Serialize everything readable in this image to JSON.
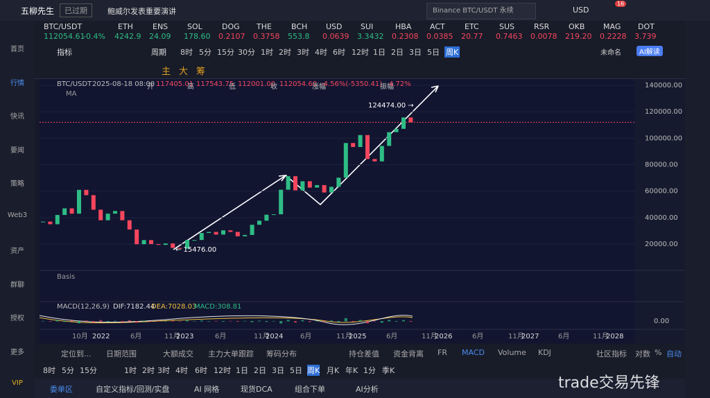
{
  "top_bar": {
    "app_name": "五柳先生",
    "status": "已过期",
    "news": "鲍威尔发表重要演讲",
    "search": "Binance BTC/USDT 永续",
    "currency": "USD",
    "badge": "16"
  },
  "tickers": [
    {
      "symbol": "BTC/USDT",
      "price": "112054.61",
      "change": "-0.4%"
    },
    {
      "symbol": "ETH",
      "price": "4242.9"
    },
    {
      "symbol": "ENS",
      "price": "24.09"
    },
    {
      "symbol": "SOL",
      "price": "178.60"
    },
    {
      "symbol": "DOG",
      "price": "0.2107"
    },
    {
      "symbol": "THE",
      "price": "0.3758"
    },
    {
      "symbol": "BCH",
      "price": "553.8"
    },
    {
      "symbol": "USD",
      "price": "0.0639"
    },
    {
      "symbol": "SUI",
      "price": "3.3432"
    },
    {
      "symbol": "HBA",
      "price": "0.2308"
    },
    {
      "symbol": "ACT",
      "price": "0.0385"
    },
    {
      "symbol": "ETC",
      "price": "20.77"
    },
    {
      "symbol": "SUS",
      "price": "0.7463"
    },
    {
      "symbol": "RSR",
      "price": "0.0078"
    },
    {
      "symbol": "OKB",
      "price": "219.20"
    },
    {
      "symbol": "MAG",
      "price": "0.2228"
    },
    {
      "symbol": "DOT",
      "price": "3.739"
    }
  ],
  "toolbar": {
    "indicator": "指标",
    "period": "周期",
    "periods": [
      "8时",
      "5分",
      "15分",
      "30分",
      "1时",
      "2时",
      "3时",
      "4时",
      "6时",
      "12时",
      "1日",
      "2日",
      "3日",
      "5日",
      "周K"
    ],
    "layout": "未命名",
    "ai": "AI解读",
    "draw_tools": [
      "主",
      "大",
      "筹"
    ]
  },
  "sidebar": [
    "首页",
    "行情",
    "快讯",
    "要闻",
    "策略",
    "Web3",
    "资产",
    "群聊",
    "授权",
    "更多",
    "VIP"
  ],
  "chart": {
    "symbol": "BTC/USDT",
    "datetime": "2025-08-18 08:00",
    "ohlc": [
      [
        "开",
        "117405.01"
      ],
      [
        "高",
        "117543.75"
      ],
      [
        "低",
        "112001.00"
      ],
      [
        "收",
        "112054.60"
      ],
      [
        "涨幅",
        "-4.56%(-5350.41)"
      ],
      [
        "振幅",
        "4.72%"
      ]
    ],
    "ma": "MA",
    "basis": "Basis",
    "high_label": "124474.00 →",
    "low_label": "← 15476.00",
    "ylim": [
      0,
      145000
    ],
    "yticks": [
      {
        "value": 140000,
        "label": "140000.00"
      },
      {
        "value": 120000,
        "label": "120000.00"
      },
      {
        "value": 100000,
        "label": "100000.00"
      },
      {
        "value": 80000,
        "label": "80000.00"
      },
      {
        "value": 60000,
        "label": "60000.00"
      },
      {
        "value": 40000,
        "label": "40000.00"
      },
      {
        "value": 20000,
        "label": "20000.00"
      }
    ],
    "last_price": 112054.6,
    "closes": [
      37000,
      35000,
      42000,
      47000,
      43000,
      61000,
      57000,
      46000,
      38000,
      43000,
      45000,
      38000,
      31000,
      19900,
      23000,
      20000,
      19400,
      20500,
      17100,
      16500,
      23100,
      23100,
      28400,
      29200,
      27200,
      30400,
      29200,
      25900,
      26900,
      34600,
      37700,
      42200,
      42500,
      61100,
      71300,
      60600,
      67500,
      62700,
      64600,
      59000,
      63300,
      70200,
      96400,
      93400,
      102400,
      84300,
      82500,
      94200,
      104600,
      107100,
      115700,
      112054.6
    ],
    "up_color": "#2ebd85",
    "down_color": "#f6465d",
    "macd": {
      "title": "MACD(12,26,9)",
      "dif": "DIF:7182.44",
      "dea": "DEA:7028.03",
      "macd": "MACD:308.81",
      "zero": "0.00"
    },
    "time_labels": [
      "10月",
      "2022",
      "6月",
      "11月",
      "2023",
      "6月",
      "11月",
      "2024",
      "6月",
      "11月",
      "2025",
      "6月",
      "11月",
      "2026",
      "6月",
      "11月",
      "2027",
      "6月",
      "11月",
      "2028"
    ]
  },
  "tabs": [
    "定位到...",
    "日期范围",
    "大额成交",
    "主力大单跟踪",
    "筹码分布",
    "持仓差值",
    "资金背离",
    "FR",
    "MACD",
    "Volume",
    "KDJ",
    "社区指标",
    "对数",
    "%",
    "自动"
  ],
  "periods2": [
    "8时",
    "5分",
    "15分",
    "1时",
    "2时",
    "3时",
    "4时",
    "6时",
    "12时",
    "1日",
    "2日",
    "3日",
    "5日",
    "周K",
    "月K",
    "年K",
    "1分",
    "季K"
  ],
  "bottom_bar": [
    "委单区",
    "自定义指标/回测/实盘",
    "AI 网格",
    "现货DCA",
    "组合下单",
    "AI分析"
  ],
  "watermark": "trade交易先锋"
}
